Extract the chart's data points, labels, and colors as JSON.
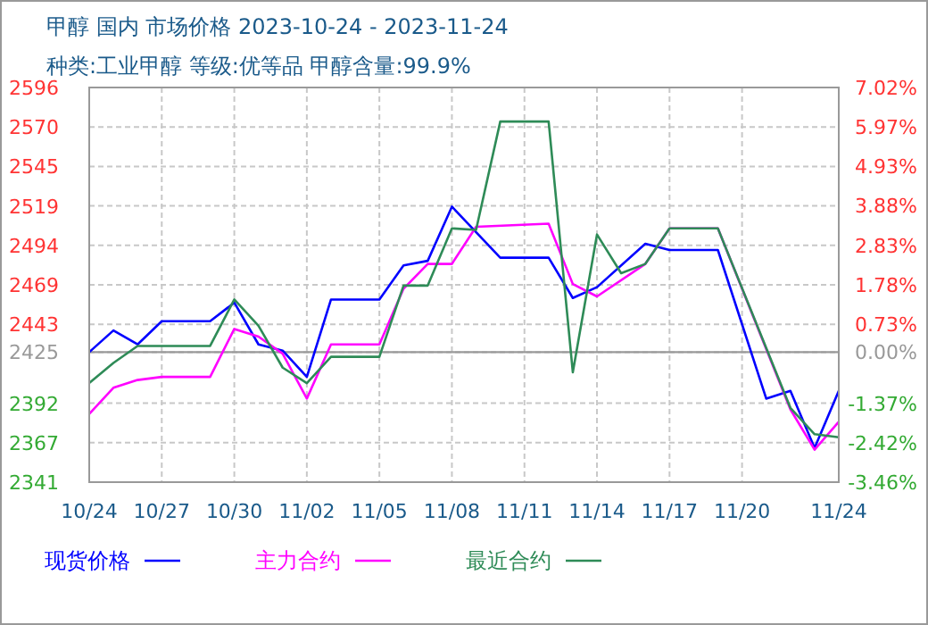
{
  "chart_data": {
    "type": "line",
    "title": "甲醇  国内  市场价格  2023-10-24 - 2023-11-24",
    "subtitle": "种类:工业甲醇  等级:优等品  甲醇含量:99.9%",
    "xlim": [
      "2023-10-24",
      "2023-11-24"
    ],
    "xticks": [
      {
        "value": "2023-10-24",
        "label": "10/24"
      },
      {
        "value": "2023-10-27",
        "label": "10/27"
      },
      {
        "value": "2023-10-30",
        "label": "10/30"
      },
      {
        "value": "2023-11-02",
        "label": "11/02"
      },
      {
        "value": "2023-11-05",
        "label": "11/05"
      },
      {
        "value": "2023-11-08",
        "label": "11/08"
      },
      {
        "value": "2023-11-11",
        "label": "11/11"
      },
      {
        "value": "2023-11-14",
        "label": "11/14"
      },
      {
        "value": "2023-11-17",
        "label": "11/17"
      },
      {
        "value": "2023-11-20",
        "label": "11/20"
      },
      {
        "value": "2023-11-24",
        "label": "11/24"
      }
    ],
    "ylim": [
      2341,
      2596
    ],
    "yticks": [
      2596,
      {
        "value": 2570.5,
        "label": "2570"
      },
      2545,
      {
        "value": 2519.5,
        "label": "2519"
      },
      2494,
      {
        "value": 2468.5,
        "label": "2469"
      },
      2443,
      2425,
      2392,
      {
        "value": 2366.5,
        "label": "2367"
      },
      2341
    ],
    "y2lim": [
      -3.46,
      7.02
    ],
    "y2ticks": [
      {
        "value": 7.02,
        "label": "7.02%"
      },
      {
        "value": 5.97,
        "label": "5.97%"
      },
      {
        "value": 4.93,
        "label": "4.93%"
      },
      {
        "value": 3.88,
        "label": "3.88%"
      },
      {
        "value": 2.83,
        "label": "2.83%"
      },
      {
        "value": 1.78,
        "label": "1.78%"
      },
      {
        "value": 0.73,
        "label": "0.73%"
      },
      {
        "value": 0,
        "label": "0.00%"
      },
      {
        "value": -1.37,
        "label": "-1.37%"
      },
      {
        "value": -2.42,
        "label": "-2.42%"
      },
      {
        "value": -3.46,
        "label": "-3.46%"
      }
    ],
    "ref_lines": [
      {
        "axis": "y",
        "value": 2425,
        "color": "#999999"
      }
    ],
    "grid": true,
    "legend": "bottom",
    "marker": "none",
    "line_style": "solid",
    "series": [
      {
        "name": "现货价格",
        "color": "#0000ff",
        "x": [
          "2023-10-24",
          "2023-10-25",
          "2023-10-26",
          "2023-10-27",
          "2023-10-29",
          "2023-10-30",
          "2023-10-31",
          "2023-11-01",
          "2023-11-02",
          "2023-11-03",
          "2023-11-05",
          "2023-11-06",
          "2023-11-07",
          "2023-11-08",
          "2023-11-10",
          "2023-11-12",
          "2023-11-13",
          "2023-11-14",
          "2023-11-16",
          "2023-11-17",
          "2023-11-19",
          "2023-11-21",
          "2023-11-22",
          "2023-11-23",
          "2023-11-24"
        ],
        "values": [
          2425,
          2439,
          2430,
          2445,
          2445,
          2457,
          2430,
          2426,
          2409,
          2459,
          2459,
          2481,
          2484,
          2519,
          2486,
          2486,
          2460,
          2467,
          2495,
          2491,
          2491,
          2395,
          2400,
          2363,
          2400
        ]
      },
      {
        "name": "主力合约",
        "color": "#ff00ff",
        "x": [
          "2023-10-24",
          "2023-10-25",
          "2023-10-26",
          "2023-10-27",
          "2023-10-29",
          "2023-10-30",
          "2023-10-31",
          "2023-11-01",
          "2023-11-02",
          "2023-11-03",
          "2023-11-05",
          "2023-11-06",
          "2023-11-07",
          "2023-11-08",
          "2023-11-09",
          "2023-11-12",
          "2023-11-13",
          "2023-11-14",
          "2023-11-16",
          "2023-11-17",
          "2023-11-19",
          "2023-11-22",
          "2023-11-23",
          "2023-11-24"
        ],
        "values": [
          2385,
          2402,
          2407,
          2409,
          2409,
          2440,
          2435,
          2424,
          2395,
          2430,
          2430,
          2466,
          2482,
          2482,
          2506,
          2508,
          2469,
          2461,
          2482,
          2505,
          2505,
          2388,
          2362,
          2380
        ]
      },
      {
        "name": "最近合约",
        "color": "#2e8b57",
        "x": [
          "2023-10-24",
          "2023-10-25",
          "2023-10-26",
          "2023-10-27",
          "2023-10-29",
          "2023-10-30",
          "2023-10-31",
          "2023-11-01",
          "2023-11-02",
          "2023-11-03",
          "2023-11-05",
          "2023-11-06",
          "2023-11-07",
          "2023-11-08",
          "2023-11-09",
          "2023-11-10",
          "2023-11-12",
          "2023-11-13",
          "2023-11-14",
          "2023-11-15",
          "2023-11-16",
          "2023-11-17",
          "2023-11-19",
          "2023-11-22",
          "2023-11-23",
          "2023-11-24"
        ],
        "values": [
          2405,
          2418,
          2429,
          2429,
          2429,
          2459,
          2442,
          2415,
          2405,
          2422,
          2422,
          2468,
          2468,
          2505,
          2504,
          2574,
          2574,
          2412,
          2501,
          2476,
          2482,
          2505,
          2505,
          2389,
          2372,
          2370
        ]
      }
    ]
  }
}
